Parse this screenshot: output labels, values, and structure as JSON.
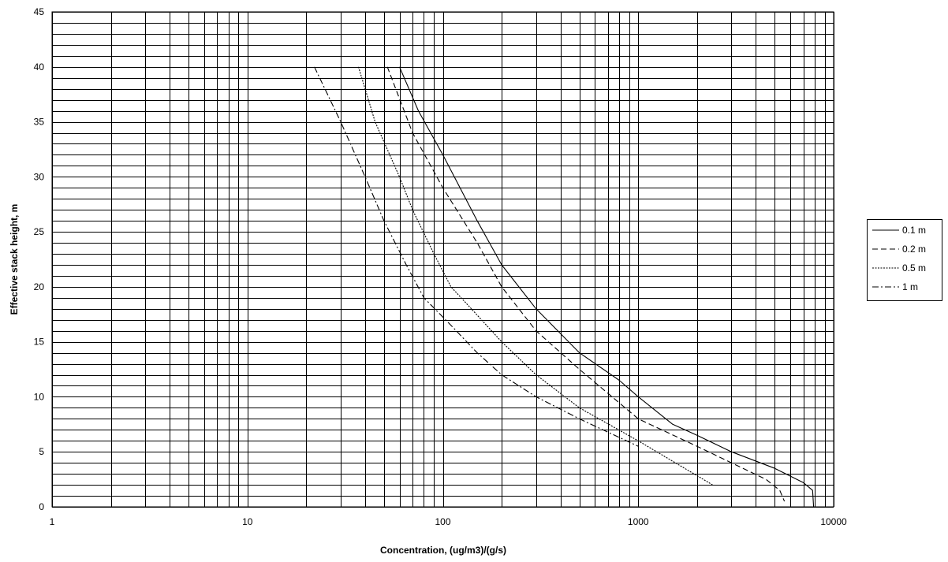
{
  "chart_data": {
    "type": "line",
    "xlabel": "Concentration, (ug/m3)/(g/s)",
    "ylabel": "Effective stack height, m",
    "xscale": "log",
    "xlim": [
      1,
      10000
    ],
    "ylim": [
      0,
      45
    ],
    "x_tick_labels": [
      "1",
      "10",
      "100",
      "1000",
      "10000"
    ],
    "y_tick_labels": [
      "0",
      "5",
      "10",
      "15",
      "20",
      "25",
      "30",
      "35",
      "40",
      "45"
    ],
    "grid": true,
    "legend_position": "right",
    "series": [
      {
        "name": "0.1 m",
        "dash": "solid",
        "points": [
          [
            60,
            40
          ],
          [
            75,
            36
          ],
          [
            100,
            32
          ],
          [
            150,
            26
          ],
          [
            200,
            22
          ],
          [
            300,
            18
          ],
          [
            500,
            14
          ],
          [
            800,
            11.5
          ],
          [
            1000,
            10
          ],
          [
            1500,
            7.5
          ],
          [
            2000,
            6.5
          ],
          [
            3000,
            5
          ],
          [
            5000,
            3.5
          ],
          [
            7000,
            2.2
          ],
          [
            7800,
            1.5
          ],
          [
            7900,
            0
          ]
        ]
      },
      {
        "name": "0.2 m",
        "dash": "dashed",
        "points": [
          [
            52,
            40
          ],
          [
            70,
            34
          ],
          [
            100,
            29
          ],
          [
            150,
            24
          ],
          [
            200,
            20
          ],
          [
            300,
            16
          ],
          [
            500,
            12.5
          ],
          [
            1000,
            8
          ],
          [
            2000,
            5.5
          ],
          [
            3000,
            4
          ],
          [
            4500,
            2.5
          ],
          [
            5300,
            1.5
          ],
          [
            5600,
            0.5
          ]
        ]
      },
      {
        "name": "0.5 m",
        "dash": "dotted",
        "points": [
          [
            37,
            40
          ],
          [
            45,
            35
          ],
          [
            60,
            30
          ],
          [
            70,
            27
          ],
          [
            90,
            23
          ],
          [
            110,
            20
          ],
          [
            140,
            18
          ],
          [
            200,
            15
          ],
          [
            300,
            12
          ],
          [
            500,
            9
          ],
          [
            1000,
            6
          ],
          [
            2400,
            2
          ]
        ]
      },
      {
        "name": "1 m",
        "dash": "dashdot",
        "points": [
          [
            22,
            40
          ],
          [
            30,
            35
          ],
          [
            40,
            30
          ],
          [
            50,
            26
          ],
          [
            65,
            22
          ],
          [
            80,
            19
          ],
          [
            110,
            16.5
          ],
          [
            150,
            14
          ],
          [
            200,
            12
          ],
          [
            300,
            10
          ],
          [
            500,
            8
          ],
          [
            1000,
            5.5
          ]
        ]
      }
    ]
  }
}
